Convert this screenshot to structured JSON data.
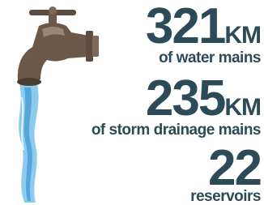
{
  "stats": [
    {
      "value": 321,
      "unit": "KM",
      "label": "of water mains"
    },
    {
      "value": 235,
      "unit": "KM",
      "label": "of storm drainage mains"
    },
    {
      "value": 22,
      "label": "reservoirs"
    }
  ]
}
